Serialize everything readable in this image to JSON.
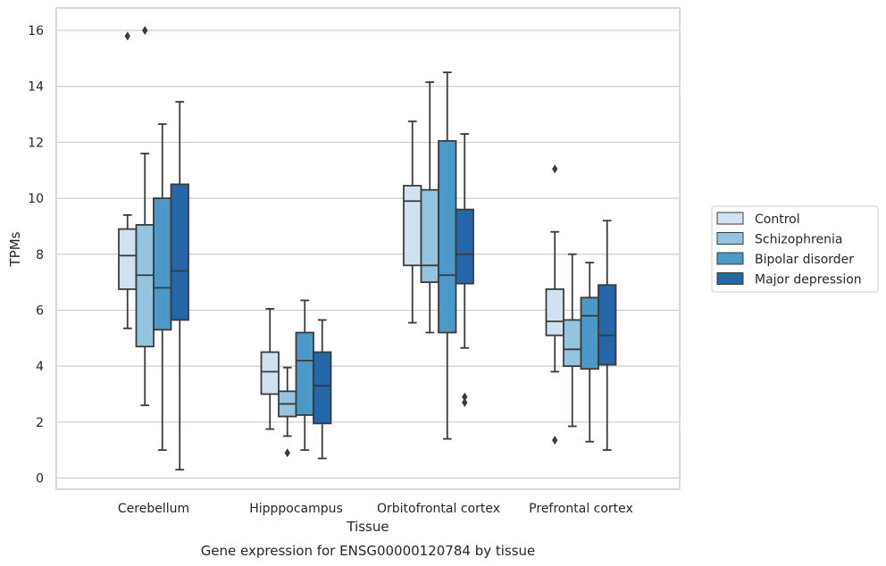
{
  "chart_data": {
    "type": "box",
    "xlabel": "Tissue",
    "ylabel": "TPMs",
    "caption": "Gene expression for ENSG00000120784 by tissue",
    "ylim": [
      -0.4,
      16.8
    ],
    "yticks": [
      "0",
      "2",
      "4",
      "6",
      "8",
      "10",
      "12",
      "14",
      "16"
    ],
    "grid": true,
    "legend_position": "right",
    "categories": [
      "Cerebellum",
      "Hipppocampus",
      "Orbitofrontal cortex",
      "Prefrontal cortex"
    ],
    "series": [
      {
        "name": "Control",
        "color": "#d0e1f2",
        "boxes": [
          {
            "whislo": 5.35,
            "q1": 6.75,
            "med": 7.95,
            "q3": 8.9,
            "whishi": 9.4,
            "fliers": [
              15.8
            ]
          },
          {
            "whislo": 1.75,
            "q1": 3.0,
            "med": 3.8,
            "q3": 4.5,
            "whishi": 6.05,
            "fliers": []
          },
          {
            "whislo": 5.55,
            "q1": 7.6,
            "med": 9.9,
            "q3": 10.45,
            "whishi": 12.75,
            "fliers": []
          },
          {
            "whislo": 3.8,
            "q1": 5.1,
            "med": 5.6,
            "q3": 6.75,
            "whishi": 8.8,
            "fliers": [
              11.05,
              1.35
            ]
          }
        ]
      },
      {
        "name": "Schizophrenia",
        "color": "#94c4df",
        "boxes": [
          {
            "whislo": 2.6,
            "q1": 4.7,
            "med": 7.25,
            "q3": 9.05,
            "whishi": 11.6,
            "fliers": [
              16.0
            ]
          },
          {
            "whislo": 1.5,
            "q1": 2.2,
            "med": 2.65,
            "q3": 3.1,
            "whishi": 3.95,
            "fliers": [
              0.9
            ]
          },
          {
            "whislo": 5.2,
            "q1": 7.0,
            "med": 7.6,
            "q3": 10.3,
            "whishi": 14.15,
            "fliers": []
          },
          {
            "whislo": 1.85,
            "q1": 4.0,
            "med": 4.6,
            "q3": 5.65,
            "whishi": 8.0,
            "fliers": []
          }
        ]
      },
      {
        "name": "Bipolar disorder",
        "color": "#4b98c9",
        "boxes": [
          {
            "whislo": 1.0,
            "q1": 5.3,
            "med": 6.8,
            "q3": 10.0,
            "whishi": 12.65,
            "fliers": []
          },
          {
            "whislo": 1.0,
            "q1": 2.25,
            "med": 4.2,
            "q3": 5.2,
            "whishi": 6.35,
            "fliers": []
          },
          {
            "whislo": 1.4,
            "q1": 5.2,
            "med": 7.25,
            "q3": 12.05,
            "whishi": 14.5,
            "fliers": []
          },
          {
            "whislo": 1.3,
            "q1": 3.9,
            "med": 5.8,
            "q3": 6.45,
            "whishi": 7.7,
            "fliers": []
          }
        ]
      },
      {
        "name": "Major depression",
        "color": "#2566a8",
        "boxes": [
          {
            "whislo": 0.3,
            "q1": 5.65,
            "med": 7.4,
            "q3": 10.5,
            "whishi": 13.45,
            "fliers": []
          },
          {
            "whislo": 0.7,
            "q1": 1.95,
            "med": 3.3,
            "q3": 4.5,
            "whishi": 5.65,
            "fliers": []
          },
          {
            "whislo": 4.65,
            "q1": 6.95,
            "med": 8.0,
            "q3": 9.6,
            "whishi": 12.3,
            "fliers": [
              2.9,
              2.7
            ]
          },
          {
            "whislo": 1.0,
            "q1": 4.05,
            "med": 5.1,
            "q3": 6.9,
            "whishi": 9.2,
            "fliers": []
          }
        ]
      }
    ]
  }
}
